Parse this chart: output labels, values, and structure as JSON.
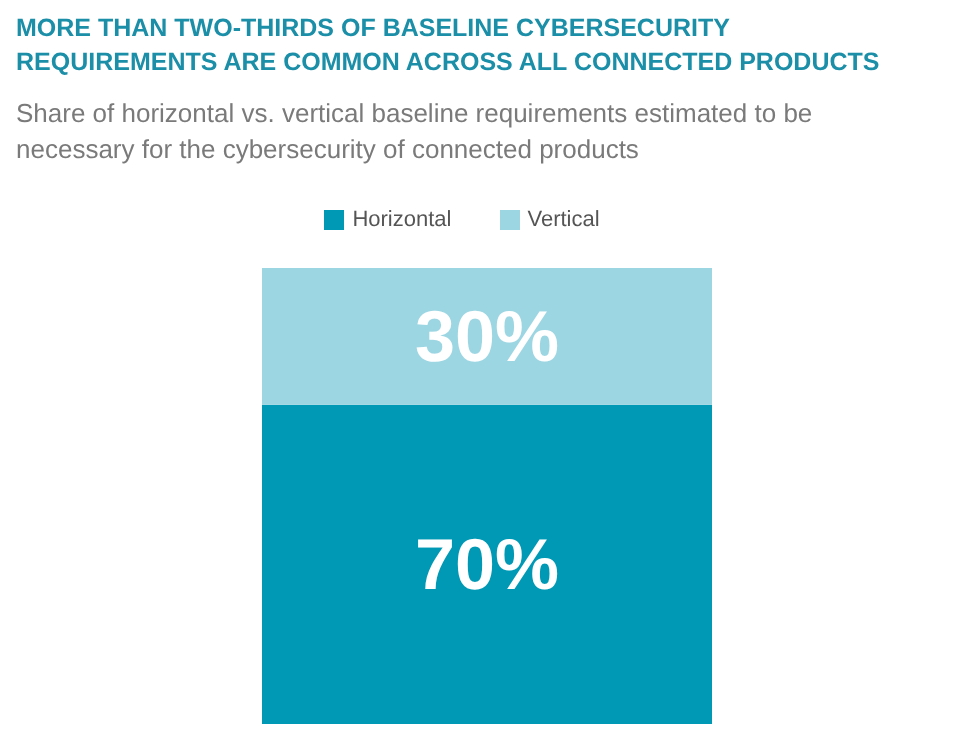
{
  "chart_data": {
    "type": "bar",
    "title": "MORE THAN TWO-THIRDS OF BASELINE CYBERSECURITY REQUIREMENTS ARE COMMON ACROSS ALL CONNECTED PRODUCTS",
    "subtitle": "Share of horizontal vs. vertical baseline requirements estimated to be necessary for the cybersecurity of connected products",
    "categories": [
      null
    ],
    "stacked": true,
    "legend": "top",
    "series": [
      {
        "name": "Horizontal",
        "color": "#0099b5",
        "values": [
          70
        ],
        "value_labels": [
          "70%"
        ]
      },
      {
        "name": "Vertical",
        "color": "#9dd6e3",
        "values": [
          30
        ],
        "value_labels": [
          "30%"
        ]
      }
    ]
  }
}
